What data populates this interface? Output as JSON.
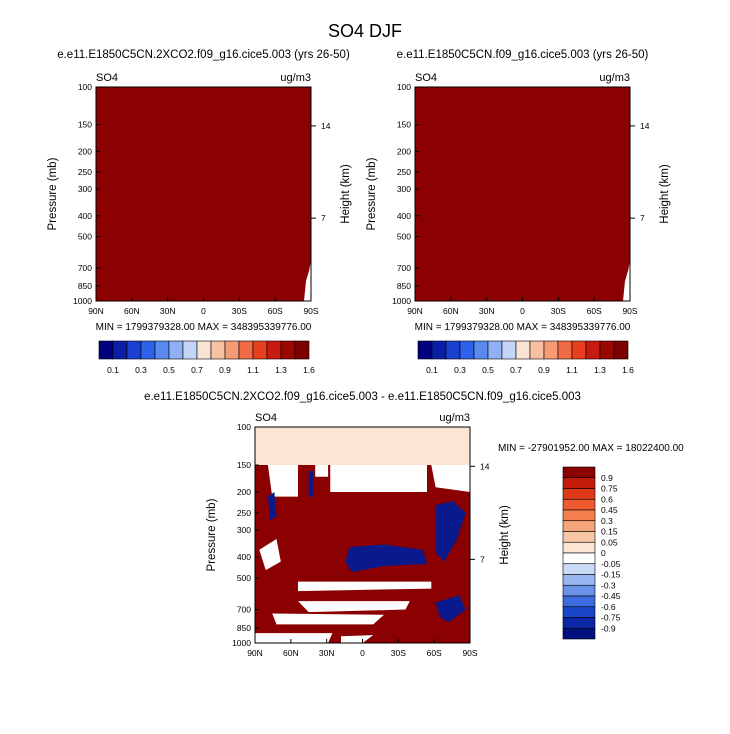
{
  "figure": {
    "title": "SO4 DJF"
  },
  "chart_data": [
    {
      "type": "heatmap",
      "id": "top-left",
      "title": "e.e11.E1850C5CN.2XCO2.f09_g16.cice5.003 (yrs 26-50)",
      "left_label": "SO4",
      "right_label": "ug/m3",
      "ylabel": "Pressure (mb)",
      "y2label": "Height (km)",
      "x_ticks": [
        "90N",
        "60N",
        "30N",
        "0",
        "30S",
        "60S",
        "90S"
      ],
      "y_ticks": [
        "100",
        "150",
        "200",
        "250",
        "300",
        "400",
        "500",
        "700",
        "850",
        "1000"
      ],
      "y2_ticks": [
        "14",
        "7"
      ],
      "minmax": "MIN = 1799379328.00   MAX = 348395339776.00",
      "fill_color": "#8b0000",
      "colorbar": {
        "orientation": "horizontal",
        "labels": [
          "0.1",
          "0.3",
          "0.5",
          "0.7",
          "0.9",
          "1.1",
          "1.3",
          "1.6"
        ],
        "colors": [
          "#00007f",
          "#0a1fa5",
          "#1b3fcf",
          "#2e62eb",
          "#5a89f0",
          "#8fb0f4",
          "#c3d6f9",
          "#f9e3d2",
          "#f8c1a2",
          "#f49a74",
          "#f06a44",
          "#e83f1f",
          "#c71b0d",
          "#9a0600",
          "#7d0000"
        ]
      }
    },
    {
      "type": "heatmap",
      "id": "top-right",
      "title": "e.e11.E1850C5CN.f09_g16.cice5.003 (yrs 26-50)",
      "left_label": "SO4",
      "right_label": "ug/m3",
      "ylabel": "Pressure (mb)",
      "y2label": "Height (km)",
      "x_ticks": [
        "90N",
        "60N",
        "30N",
        "0",
        "30S",
        "60S",
        "90S"
      ],
      "y_ticks": [
        "100",
        "150",
        "200",
        "250",
        "300",
        "400",
        "500",
        "700",
        "850",
        "1000"
      ],
      "y2_ticks": [
        "14",
        "7"
      ],
      "minmax": "MIN = 1799379328.00   MAX = 348395339776.00",
      "fill_color": "#8b0000",
      "colorbar": {
        "orientation": "horizontal",
        "labels": [
          "0.1",
          "0.3",
          "0.5",
          "0.7",
          "0.9",
          "1.1",
          "1.3",
          "1.6"
        ],
        "colors": [
          "#00007f",
          "#0a1fa5",
          "#1b3fcf",
          "#2e62eb",
          "#5a89f0",
          "#8fb0f4",
          "#c3d6f9",
          "#f9e3d2",
          "#f8c1a2",
          "#f49a74",
          "#f06a44",
          "#e83f1f",
          "#c71b0d",
          "#9a0600",
          "#7d0000"
        ]
      }
    },
    {
      "type": "heatmap",
      "id": "difference",
      "title": "e.e11.E1850C5CN.2XCO2.f09_g16.cice5.003 - e.e11.E1850C5CN.f09_g16.cice5.003",
      "left_label": "SO4",
      "right_label": "ug/m3",
      "ylabel": "Pressure (mb)",
      "y2label": "Height (km)",
      "x_ticks": [
        "90N",
        "60N",
        "30N",
        "0",
        "30S",
        "60S",
        "90S"
      ],
      "y_ticks": [
        "100",
        "150",
        "200",
        "250",
        "300",
        "400",
        "500",
        "700",
        "850",
        "1000"
      ],
      "y2_ticks": [
        "14",
        "7"
      ],
      "minmax": "MIN = -27901952.00  MAX = 18022400.00",
      "colorbar": {
        "orientation": "vertical",
        "labels": [
          "0.9",
          "0.75",
          "0.6",
          "0.45",
          "0.3",
          "0.15",
          "0.05",
          "0",
          "-0.05",
          "-0.15",
          "-0.3",
          "-0.45",
          "-0.6",
          "-0.75",
          "-0.9"
        ],
        "colors": [
          "#8b0000",
          "#c41a0a",
          "#e0391a",
          "#f05a30",
          "#f4804f",
          "#f6a57a",
          "#f8c8a6",
          "#fce5d2",
          "#ffffff",
          "#c9daf6",
          "#98b7f0",
          "#6a92e8",
          "#3d6ce0",
          "#1c46c8",
          "#0a27a6",
          "#00107f"
        ]
      }
    }
  ]
}
